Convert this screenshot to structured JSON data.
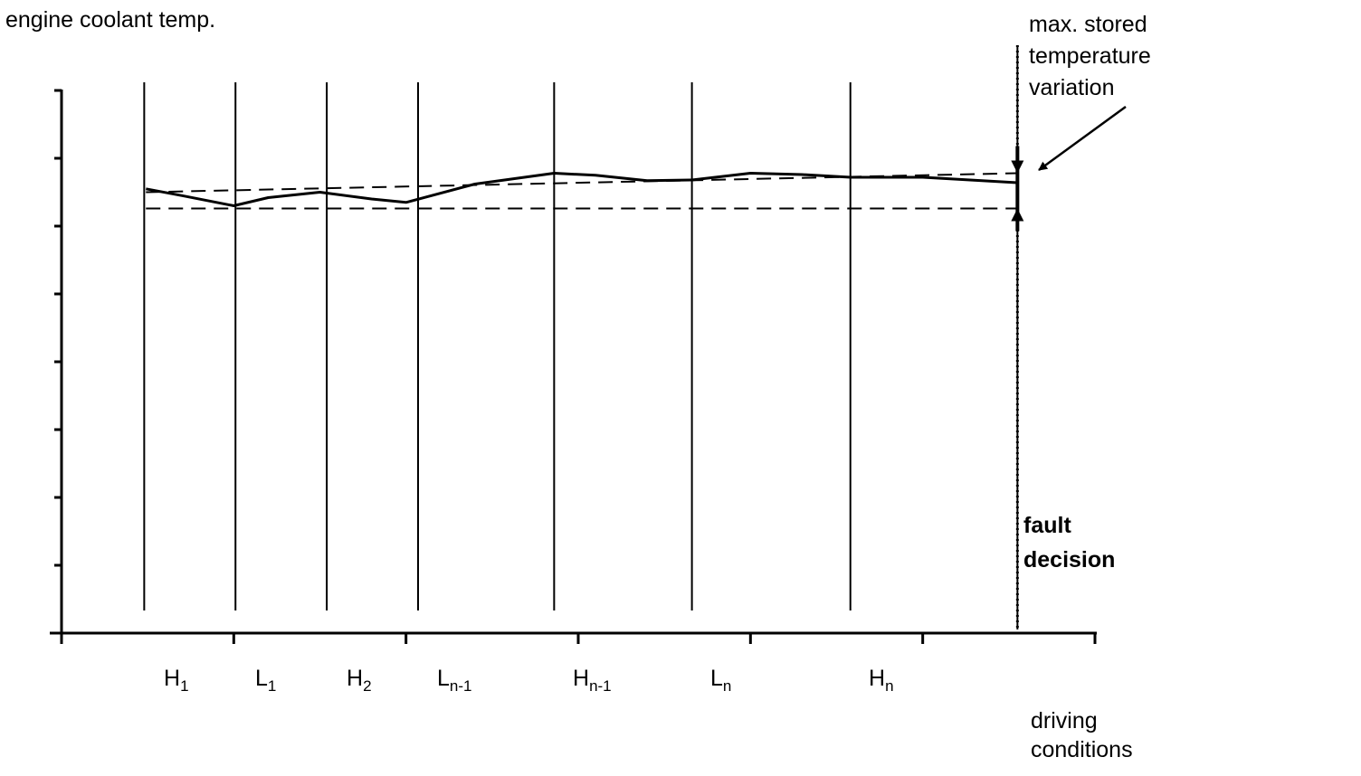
{
  "chart_data": {
    "type": "line",
    "ylabel": "engine coolant temp.",
    "xlabel_lines": [
      "driving",
      "conditions"
    ],
    "annotation": {
      "lines": [
        "max. stored",
        "temperature",
        "variation"
      ]
    },
    "fault_label": {
      "lines": [
        "fault",
        "decision"
      ]
    },
    "segments": [
      {
        "base": "H",
        "sub": "1"
      },
      {
        "base": "L",
        "sub": "1"
      },
      {
        "base": "H",
        "sub": "2"
      },
      {
        "base": "L",
        "sub": "n-1"
      },
      {
        "base": "H",
        "sub": "n-1"
      },
      {
        "base": "L",
        "sub": "n"
      },
      {
        "base": "H",
        "sub": "n"
      }
    ],
    "ylim": [
      0,
      8
    ],
    "xlim": [
      0,
      6
    ],
    "y_ticks": [
      0,
      1,
      2,
      3,
      4,
      5,
      6,
      7,
      8
    ],
    "x_ticks": [
      0,
      1,
      2,
      3,
      4,
      5,
      6
    ],
    "segment_boundaries": [
      0.48,
      1.01,
      1.54,
      2.07,
      2.86,
      3.66,
      4.58
    ],
    "fault_x": 5.55,
    "series": [
      {
        "x": [
          0.49,
          0.7,
          1.0,
          1.2,
          1.5,
          1.8,
          2.0,
          2.4,
          2.86,
          3.1,
          3.4,
          3.66,
          4.0,
          4.3,
          4.58,
          5.0,
          5.55
        ],
        "values": [
          6.55,
          6.45,
          6.3,
          6.42,
          6.5,
          6.4,
          6.35,
          6.62,
          6.78,
          6.75,
          6.67,
          6.68,
          6.78,
          6.76,
          6.72,
          6.72,
          6.64
        ]
      }
    ],
    "reference_lines": [
      {
        "style": "dashed",
        "values": [
          6.5,
          6.78
        ]
      },
      {
        "style": "dashed",
        "values": [
          6.26,
          6.26
        ]
      }
    ],
    "bracket": {
      "x": 5.55,
      "from": 6.26,
      "to": 6.78
    }
  }
}
